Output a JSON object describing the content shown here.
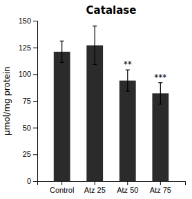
{
  "chart_data": {
    "type": "bar",
    "title": "Catalase",
    "y_label": "μmol/mg protein",
    "categories": [
      "Control",
      "Atz 25",
      "Atz 50",
      "Atz 75"
    ],
    "values": [
      121,
      127,
      94,
      82
    ],
    "errors": [
      10,
      18,
      10,
      10
    ],
    "significance": [
      null,
      null,
      "**",
      "***"
    ],
    "color": "#2b2b2b",
    "ylim": [
      0,
      150
    ],
    "yticks": [
      0,
      25,
      50,
      75,
      100,
      125,
      150
    ],
    "grid": false
  }
}
